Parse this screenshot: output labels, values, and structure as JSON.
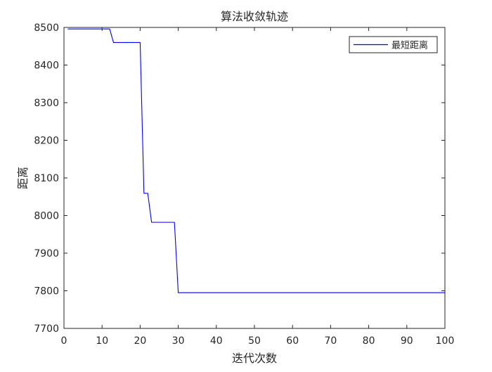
{
  "chart_data": {
    "type": "line",
    "title": "算法收敛轨迹",
    "xlabel": "迭代次数",
    "ylabel": "距离",
    "xlim": [
      0,
      100
    ],
    "ylim": [
      7700,
      8500
    ],
    "xticks": [
      0,
      10,
      20,
      30,
      40,
      50,
      60,
      70,
      80,
      90,
      100
    ],
    "yticks": [
      7700,
      7800,
      7900,
      8000,
      8100,
      8200,
      8300,
      8400,
      8500
    ],
    "grid": false,
    "legend_position": "top-right",
    "series": [
      {
        "name": "最短距离",
        "color": "#0000ff",
        "step": true,
        "x": [
          1,
          12,
          13,
          20,
          21,
          22,
          23,
          29,
          30,
          100
        ],
        "y": [
          8496,
          8496,
          8460,
          8460,
          8059,
          8059,
          7982,
          7982,
          7795,
          7795
        ]
      }
    ]
  }
}
